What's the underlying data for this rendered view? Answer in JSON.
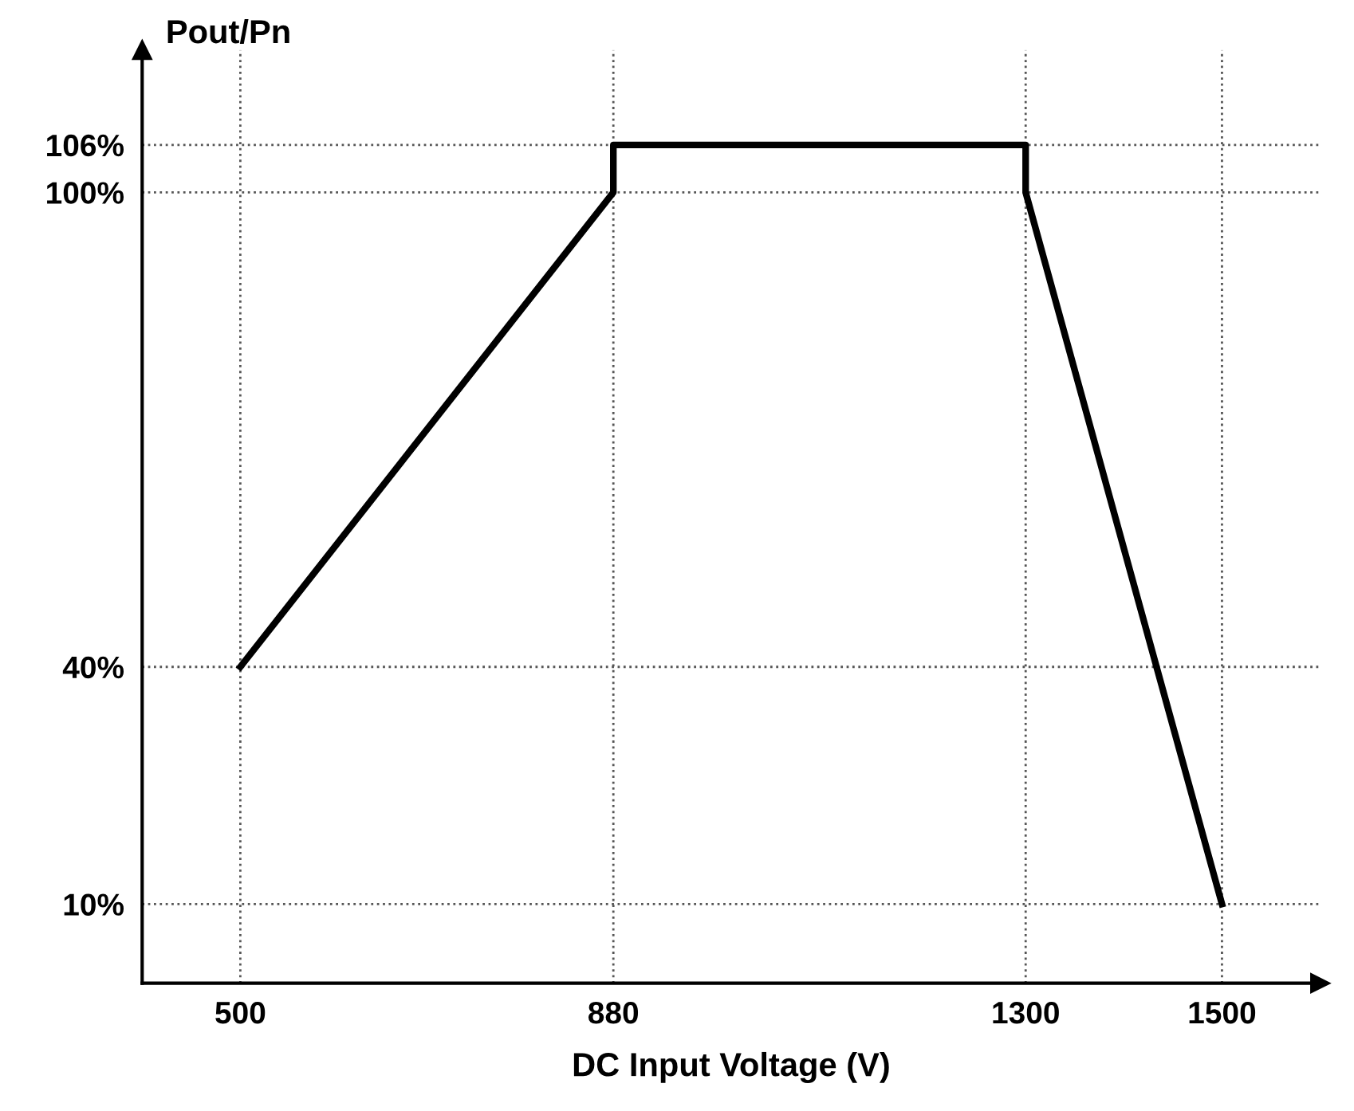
{
  "chart_data": {
    "type": "line",
    "xlabel": "DC Input Voltage (V)",
    "ylabel": "Pout/Pn",
    "series": [
      {
        "color": "#000000",
        "x": [
          500,
          880,
          880,
          1300,
          1300,
          1500
        ],
        "values": [
          40,
          100,
          106,
          106,
          100,
          10
        ]
      }
    ],
    "xlim": [
      400,
      1600
    ],
    "ylim": [
      0,
      118
    ],
    "xticks": [
      500,
      880,
      1300,
      1500
    ],
    "yticks": [
      {
        "value": 10,
        "label": "10%"
      },
      {
        "value": 40,
        "label": "40%"
      },
      {
        "value": 100,
        "label": "100%"
      },
      {
        "value": 106,
        "label": "106%"
      }
    ],
    "grid": true,
    "marker": "none",
    "line_style": "solid"
  }
}
